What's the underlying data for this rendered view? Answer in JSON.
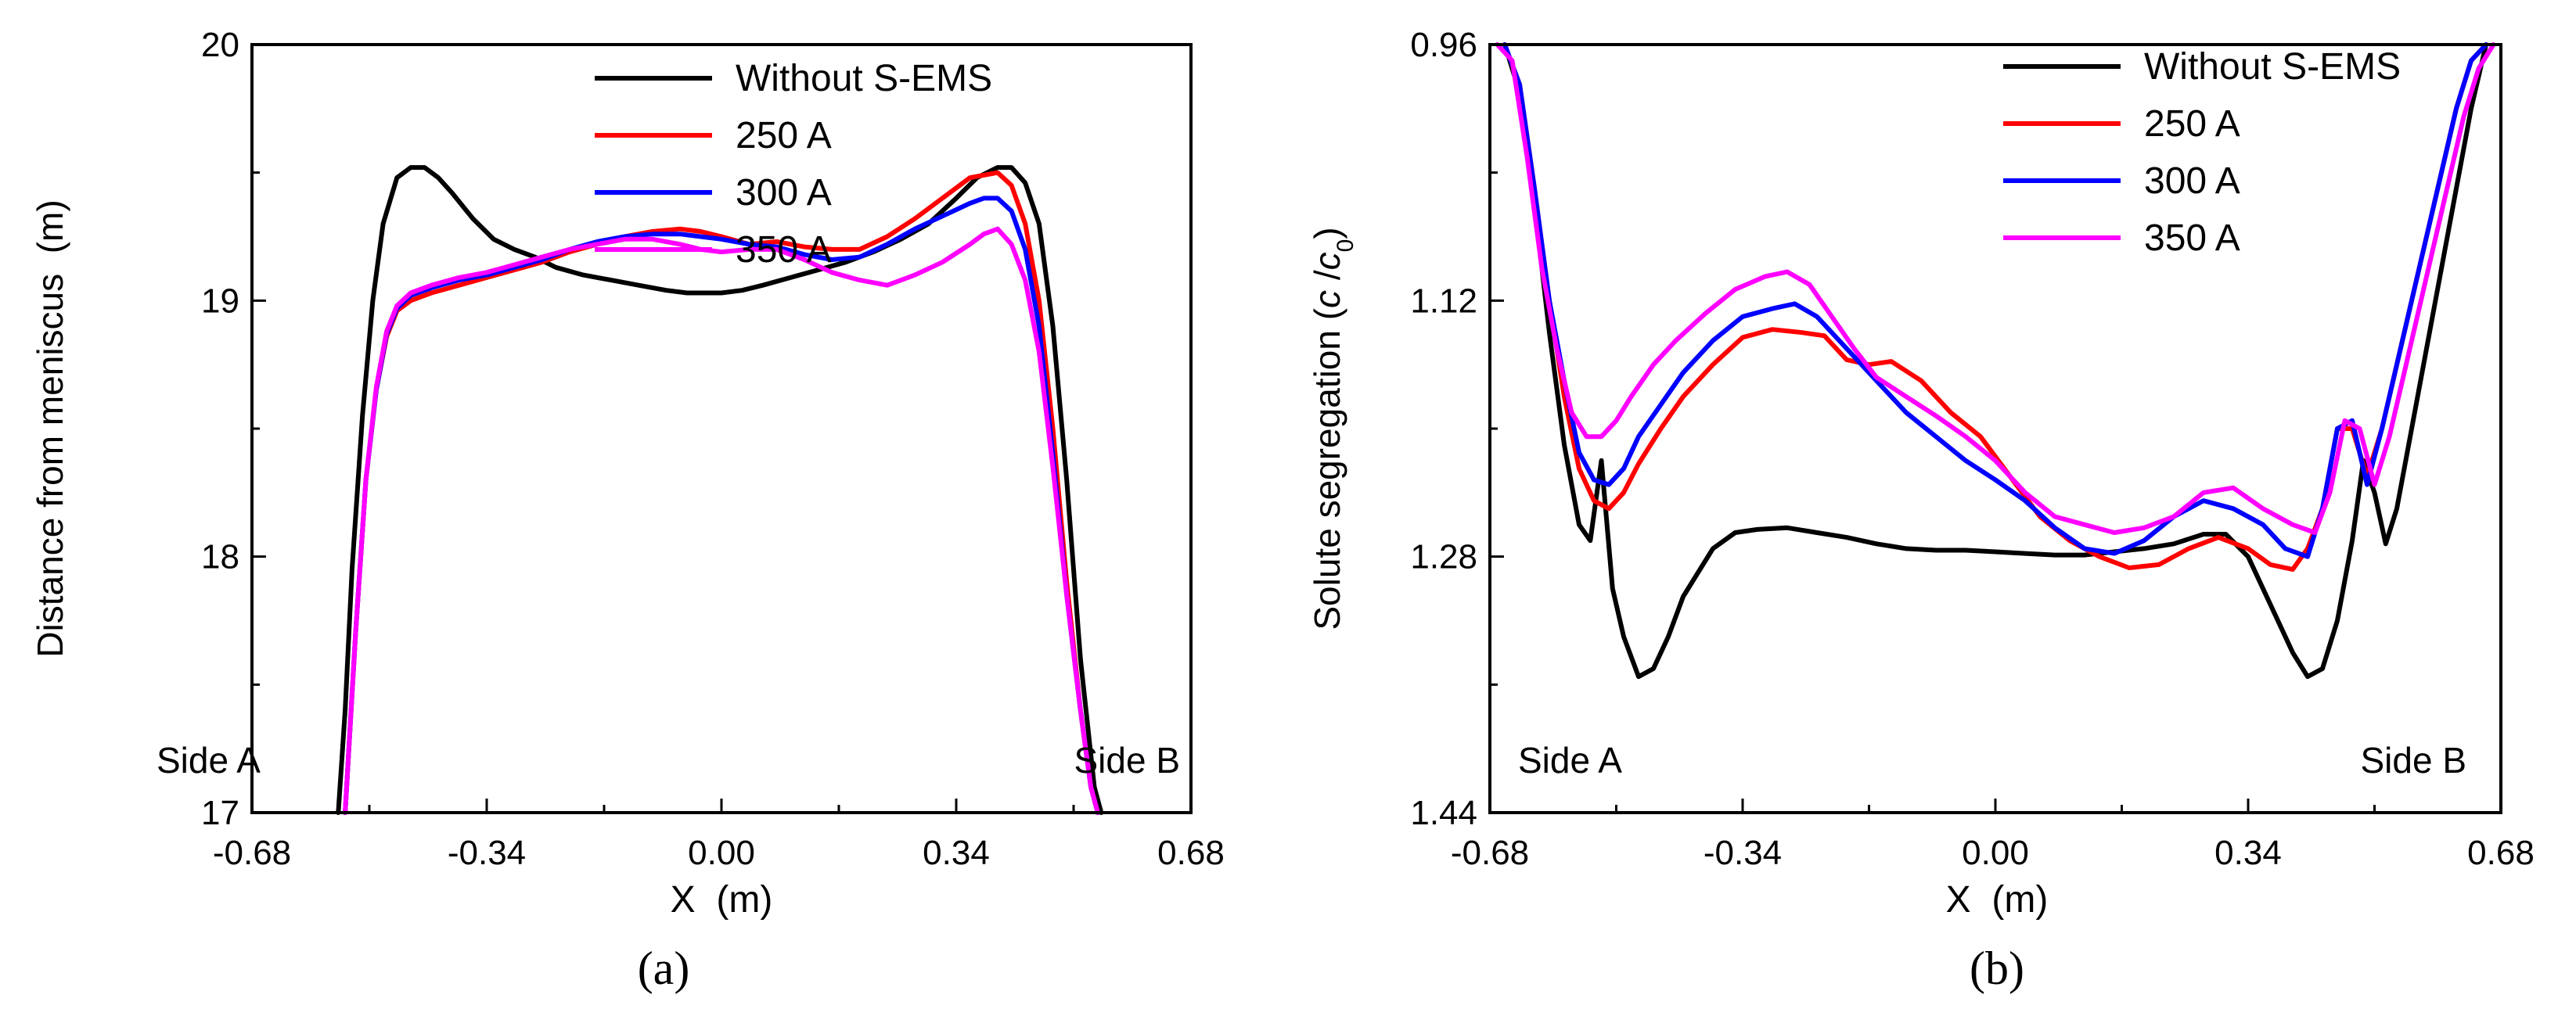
{
  "chart_data": [
    {
      "id": "a",
      "type": "line",
      "caption": "(a)",
      "xlabel": "X  (m)",
      "ylabel": "Distance from meniscus  (m)",
      "xlim": [
        -0.68,
        0.68
      ],
      "ylim": [
        20,
        17
      ],
      "y_inverted": true,
      "xticks": [
        "-0.68",
        "-0.34",
        "0.00",
        "0.34",
        "0.68"
      ],
      "xtick_values": [
        -0.68,
        -0.34,
        0.0,
        0.34,
        0.68
      ],
      "yticks": [
        "17",
        "18",
        "19",
        "20"
      ],
      "ytick_values": [
        17,
        18,
        19,
        20
      ],
      "annotations": {
        "left": "Side A",
        "right": "Side B"
      },
      "legend_position": "top-right",
      "series": [
        {
          "name": "Without S-EMS",
          "color": "#000000",
          "x": [
            -0.555,
            -0.545,
            -0.535,
            -0.52,
            -0.505,
            -0.49,
            -0.47,
            -0.45,
            -0.43,
            -0.41,
            -0.39,
            -0.36,
            -0.33,
            -0.3,
            -0.27,
            -0.24,
            -0.2,
            -0.16,
            -0.12,
            -0.08,
            -0.05,
            -0.02,
            0.0,
            0.03,
            0.06,
            0.1,
            0.14,
            0.18,
            0.22,
            0.26,
            0.3,
            0.34,
            0.37,
            0.4,
            0.42,
            0.44,
            0.46,
            0.48,
            0.5,
            0.52,
            0.54,
            0.55
          ],
          "values": [
            17.0,
            17.4,
            17.95,
            18.55,
            19.0,
            19.3,
            19.48,
            19.52,
            19.52,
            19.48,
            19.42,
            19.32,
            19.24,
            19.2,
            19.17,
            19.13,
            19.1,
            19.08,
            19.06,
            19.04,
            19.03,
            19.03,
            19.03,
            19.04,
            19.06,
            19.09,
            19.12,
            19.15,
            19.19,
            19.24,
            19.3,
            19.4,
            19.48,
            19.52,
            19.52,
            19.46,
            19.3,
            18.9,
            18.3,
            17.6,
            17.1,
            17.0
          ]
        },
        {
          "name": "250 A",
          "color": "#ff0000",
          "x": [
            -0.545,
            -0.53,
            -0.515,
            -0.5,
            -0.485,
            -0.47,
            -0.45,
            -0.42,
            -0.38,
            -0.34,
            -0.3,
            -0.26,
            -0.22,
            -0.18,
            -0.14,
            -0.1,
            -0.06,
            -0.03,
            0.0,
            0.04,
            0.08,
            0.12,
            0.16,
            0.2,
            0.24,
            0.28,
            0.32,
            0.36,
            0.4,
            0.42,
            0.44,
            0.46,
            0.48,
            0.5,
            0.52,
            0.535,
            0.545
          ],
          "values": [
            17.0,
            17.7,
            18.3,
            18.65,
            18.86,
            18.96,
            19.0,
            19.03,
            19.06,
            19.09,
            19.12,
            19.15,
            19.19,
            19.22,
            19.25,
            19.27,
            19.28,
            19.27,
            19.25,
            19.22,
            19.23,
            19.21,
            19.2,
            19.2,
            19.25,
            19.32,
            19.4,
            19.48,
            19.5,
            19.45,
            19.3,
            19.0,
            18.5,
            17.9,
            17.4,
            17.1,
            17.0
          ]
        },
        {
          "name": "300 A",
          "color": "#0000ff",
          "x": [
            -0.545,
            -0.53,
            -0.515,
            -0.5,
            -0.485,
            -0.47,
            -0.45,
            -0.42,
            -0.38,
            -0.34,
            -0.3,
            -0.26,
            -0.22,
            -0.18,
            -0.14,
            -0.1,
            -0.06,
            -0.03,
            0.0,
            0.04,
            0.08,
            0.12,
            0.16,
            0.2,
            0.24,
            0.28,
            0.32,
            0.36,
            0.38,
            0.4,
            0.42,
            0.44,
            0.46,
            0.48,
            0.5,
            0.52,
            0.535,
            0.545
          ],
          "values": [
            17.0,
            17.7,
            18.3,
            18.65,
            18.87,
            18.97,
            19.02,
            19.05,
            19.08,
            19.1,
            19.13,
            19.16,
            19.2,
            19.23,
            19.25,
            19.26,
            19.26,
            19.25,
            19.24,
            19.22,
            19.21,
            19.18,
            19.16,
            19.17,
            19.22,
            19.28,
            19.33,
            19.38,
            19.4,
            19.4,
            19.35,
            19.2,
            18.9,
            18.4,
            17.85,
            17.4,
            17.1,
            17.0
          ]
        },
        {
          "name": "350 A",
          "color": "#ff00ff",
          "x": [
            -0.545,
            -0.53,
            -0.515,
            -0.5,
            -0.485,
            -0.47,
            -0.45,
            -0.42,
            -0.38,
            -0.34,
            -0.3,
            -0.26,
            -0.22,
            -0.18,
            -0.14,
            -0.1,
            -0.06,
            -0.03,
            0.0,
            0.04,
            0.08,
            0.12,
            0.16,
            0.2,
            0.24,
            0.28,
            0.32,
            0.36,
            0.38,
            0.4,
            0.42,
            0.44,
            0.46,
            0.48,
            0.5,
            0.52,
            0.535,
            0.545
          ],
          "values": [
            17.0,
            17.7,
            18.3,
            18.66,
            18.88,
            18.98,
            19.03,
            19.06,
            19.09,
            19.11,
            19.14,
            19.17,
            19.2,
            19.22,
            19.24,
            19.24,
            19.22,
            19.2,
            19.19,
            19.2,
            19.2,
            19.16,
            19.11,
            19.08,
            19.06,
            19.1,
            19.15,
            19.22,
            19.26,
            19.28,
            19.22,
            19.08,
            18.8,
            18.35,
            17.85,
            17.4,
            17.1,
            17.0
          ]
        }
      ]
    },
    {
      "id": "b",
      "type": "line",
      "caption": "(b)",
      "xlabel": "X  (m)",
      "ylabel_prefix": "Solute segregation (",
      "ylabel_c": "c",
      "ylabel_slash": " /",
      "ylabel_c0": "c",
      "ylabel_sub": "0",
      "ylabel_suffix": ")",
      "xlim": [
        -0.68,
        0.68
      ],
      "ylim": [
        0.96,
        1.44
      ],
      "xticks": [
        "-0.68",
        "-0.34",
        "0.00",
        "0.34",
        "0.68"
      ],
      "xtick_values": [
        -0.68,
        -0.34,
        0.0,
        0.34,
        0.68
      ],
      "yticks": [
        "0.96",
        "1.12",
        "1.28",
        "1.44"
      ],
      "ytick_values": [
        0.96,
        1.12,
        1.28,
        1.44
      ],
      "annotations": {
        "left": "Side A",
        "right": "Side B"
      },
      "legend_position": "top-right",
      "series": [
        {
          "name": "Without S-EMS",
          "color": "#000000",
          "x": [
            -0.66,
            -0.64,
            -0.62,
            -0.6,
            -0.58,
            -0.56,
            -0.545,
            -0.53,
            -0.515,
            -0.5,
            -0.48,
            -0.46,
            -0.44,
            -0.42,
            -0.4,
            -0.38,
            -0.35,
            -0.32,
            -0.28,
            -0.24,
            -0.2,
            -0.16,
            -0.12,
            -0.08,
            -0.04,
            0.0,
            0.04,
            0.08,
            0.12,
            0.16,
            0.2,
            0.24,
            0.28,
            0.31,
            0.34,
            0.37,
            0.4,
            0.42,
            0.44,
            0.46,
            0.48,
            0.495,
            0.51,
            0.525,
            0.54,
            0.56,
            0.58,
            0.6,
            0.62,
            0.64,
            0.66
          ],
          "values": [
            0.96,
            0.99,
            1.06,
            1.14,
            1.21,
            1.26,
            1.27,
            1.22,
            1.3,
            1.33,
            1.355,
            1.35,
            1.33,
            1.305,
            1.29,
            1.275,
            1.265,
            1.263,
            1.262,
            1.265,
            1.268,
            1.272,
            1.275,
            1.276,
            1.276,
            1.277,
            1.278,
            1.279,
            1.279,
            1.277,
            1.275,
            1.272,
            1.266,
            1.266,
            1.28,
            1.31,
            1.34,
            1.355,
            1.35,
            1.32,
            1.27,
            1.22,
            1.24,
            1.272,
            1.25,
            1.2,
            1.15,
            1.1,
            1.05,
            1.0,
            0.96
          ]
        },
        {
          "name": "250 A",
          "color": "#ff0000",
          "x": [
            -0.66,
            -0.64,
            -0.62,
            -0.6,
            -0.58,
            -0.56,
            -0.54,
            -0.52,
            -0.5,
            -0.48,
            -0.45,
            -0.42,
            -0.38,
            -0.34,
            -0.3,
            -0.26,
            -0.23,
            -0.2,
            -0.17,
            -0.14,
            -0.1,
            -0.06,
            -0.02,
            0.02,
            0.06,
            0.1,
            0.14,
            0.18,
            0.22,
            0.26,
            0.3,
            0.34,
            0.37,
            0.4,
            0.42,
            0.44,
            0.46,
            0.48,
            0.5,
            0.52,
            0.54,
            0.56,
            0.58,
            0.6,
            0.62,
            0.64,
            0.66
          ],
          "values": [
            0.96,
            0.985,
            1.05,
            1.12,
            1.18,
            1.225,
            1.245,
            1.25,
            1.24,
            1.222,
            1.2,
            1.18,
            1.16,
            1.143,
            1.138,
            1.14,
            1.142,
            1.157,
            1.16,
            1.158,
            1.17,
            1.19,
            1.205,
            1.23,
            1.255,
            1.27,
            1.28,
            1.287,
            1.285,
            1.275,
            1.268,
            1.275,
            1.285,
            1.288,
            1.275,
            1.25,
            1.2,
            1.2,
            1.23,
            1.2,
            1.16,
            1.12,
            1.08,
            1.04,
            1.0,
            0.97,
            0.96
          ]
        },
        {
          "name": "300 A",
          "color": "#0000ff",
          "x": [
            -0.66,
            -0.64,
            -0.62,
            -0.6,
            -0.58,
            -0.56,
            -0.54,
            -0.52,
            -0.5,
            -0.48,
            -0.45,
            -0.42,
            -0.38,
            -0.34,
            -0.3,
            -0.27,
            -0.24,
            -0.21,
            -0.18,
            -0.15,
            -0.12,
            -0.08,
            -0.04,
            0.0,
            0.04,
            0.08,
            0.12,
            0.16,
            0.2,
            0.24,
            0.28,
            0.32,
            0.36,
            0.39,
            0.42,
            0.44,
            0.46,
            0.48,
            0.5,
            0.52,
            0.54,
            0.56,
            0.58,
            0.6,
            0.62,
            0.64,
            0.66
          ],
          "values": [
            0.96,
            0.985,
            1.05,
            1.12,
            1.17,
            1.215,
            1.232,
            1.235,
            1.225,
            1.205,
            1.185,
            1.165,
            1.145,
            1.13,
            1.125,
            1.122,
            1.13,
            1.145,
            1.16,
            1.175,
            1.19,
            1.205,
            1.22,
            1.232,
            1.245,
            1.262,
            1.275,
            1.278,
            1.27,
            1.255,
            1.245,
            1.25,
            1.26,
            1.275,
            1.28,
            1.25,
            1.2,
            1.195,
            1.235,
            1.2,
            1.16,
            1.12,
            1.08,
            1.04,
            1.0,
            0.97,
            0.96
          ]
        },
        {
          "name": "350 A",
          "color": "#ff00ff",
          "x": [
            -0.67,
            -0.65,
            -0.63,
            -0.61,
            -0.59,
            -0.57,
            -0.55,
            -0.53,
            -0.51,
            -0.49,
            -0.46,
            -0.43,
            -0.39,
            -0.35,
            -0.31,
            -0.28,
            -0.25,
            -0.22,
            -0.19,
            -0.16,
            -0.12,
            -0.08,
            -0.04,
            0.0,
            0.04,
            0.08,
            0.12,
            0.16,
            0.2,
            0.24,
            0.28,
            0.32,
            0.36,
            0.4,
            0.43,
            0.45,
            0.47,
            0.49,
            0.51,
            0.53,
            0.55,
            0.57,
            0.59,
            0.61,
            0.63,
            0.65,
            0.67
          ],
          "values": [
            0.96,
            0.97,
            1.03,
            1.1,
            1.15,
            1.19,
            1.205,
            1.205,
            1.195,
            1.18,
            1.16,
            1.145,
            1.128,
            1.113,
            1.105,
            1.102,
            1.11,
            1.13,
            1.15,
            1.168,
            1.18,
            1.192,
            1.205,
            1.22,
            1.24,
            1.255,
            1.26,
            1.265,
            1.262,
            1.255,
            1.24,
            1.237,
            1.25,
            1.26,
            1.265,
            1.24,
            1.195,
            1.2,
            1.235,
            1.205,
            1.165,
            1.125,
            1.085,
            1.045,
            1.005,
            0.975,
            0.96
          ]
        }
      ]
    }
  ]
}
